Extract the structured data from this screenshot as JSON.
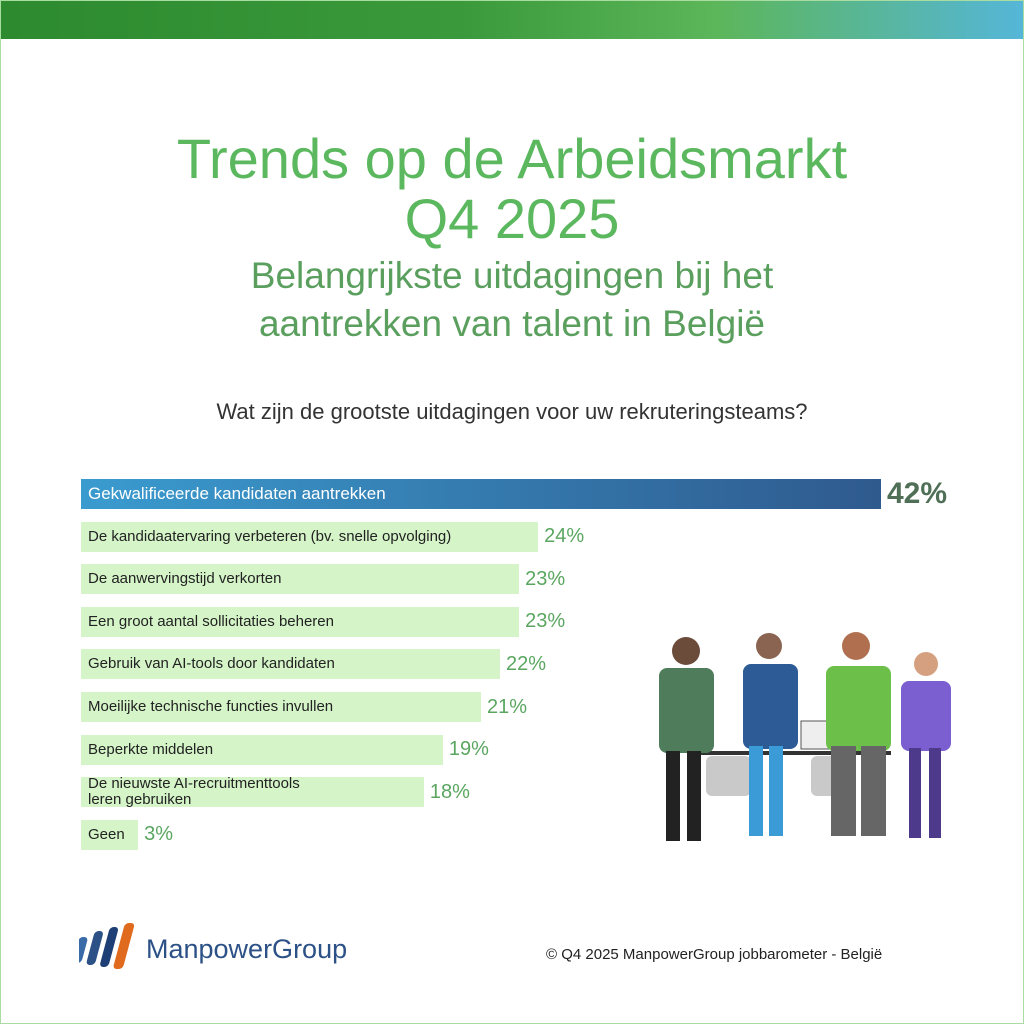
{
  "chart_data": {
    "type": "bar",
    "orientation": "horizontal",
    "title": [
      "Trends op de Arbeidsmarkt",
      "Q4 2025"
    ],
    "subtitle": [
      "Belangrijkste uitdagingen bij het",
      "aantrekken van talent in België"
    ],
    "question": "Wat zijn de grootste uitdagingen voor uw rekruteringsteams?",
    "categories": [
      "Gekwalificeerde kandidaten aantrekken",
      "De kandidaatervaring verbeteren (bv. snelle opvolging)",
      "De aanwervingstijd verkorten",
      "Een groot aantal sollicitaties beheren",
      "Gebruik van AI-tools door kandidaten",
      "Moeilijke technische functies invullen",
      "Beperkte middelen",
      "De nieuwste AI-recruitmenttools\nleren gebruiken",
      "Geen"
    ],
    "values": [
      42,
      24,
      23,
      23,
      22,
      21,
      19,
      18,
      3
    ],
    "value_labels": [
      "42%",
      "24%",
      "23%",
      "23%",
      "22%",
      "21%",
      "19%",
      "18%",
      "3%"
    ],
    "color": "#d5f5c8",
    "highlight_color": [
      "#3a9bcf",
      "#2f5a8e"
    ]
  },
  "footer": {
    "logo": "ManpowerGroup",
    "copyright": "© Q4 2025 ManpowerGroup jobbarometer - België"
  }
}
